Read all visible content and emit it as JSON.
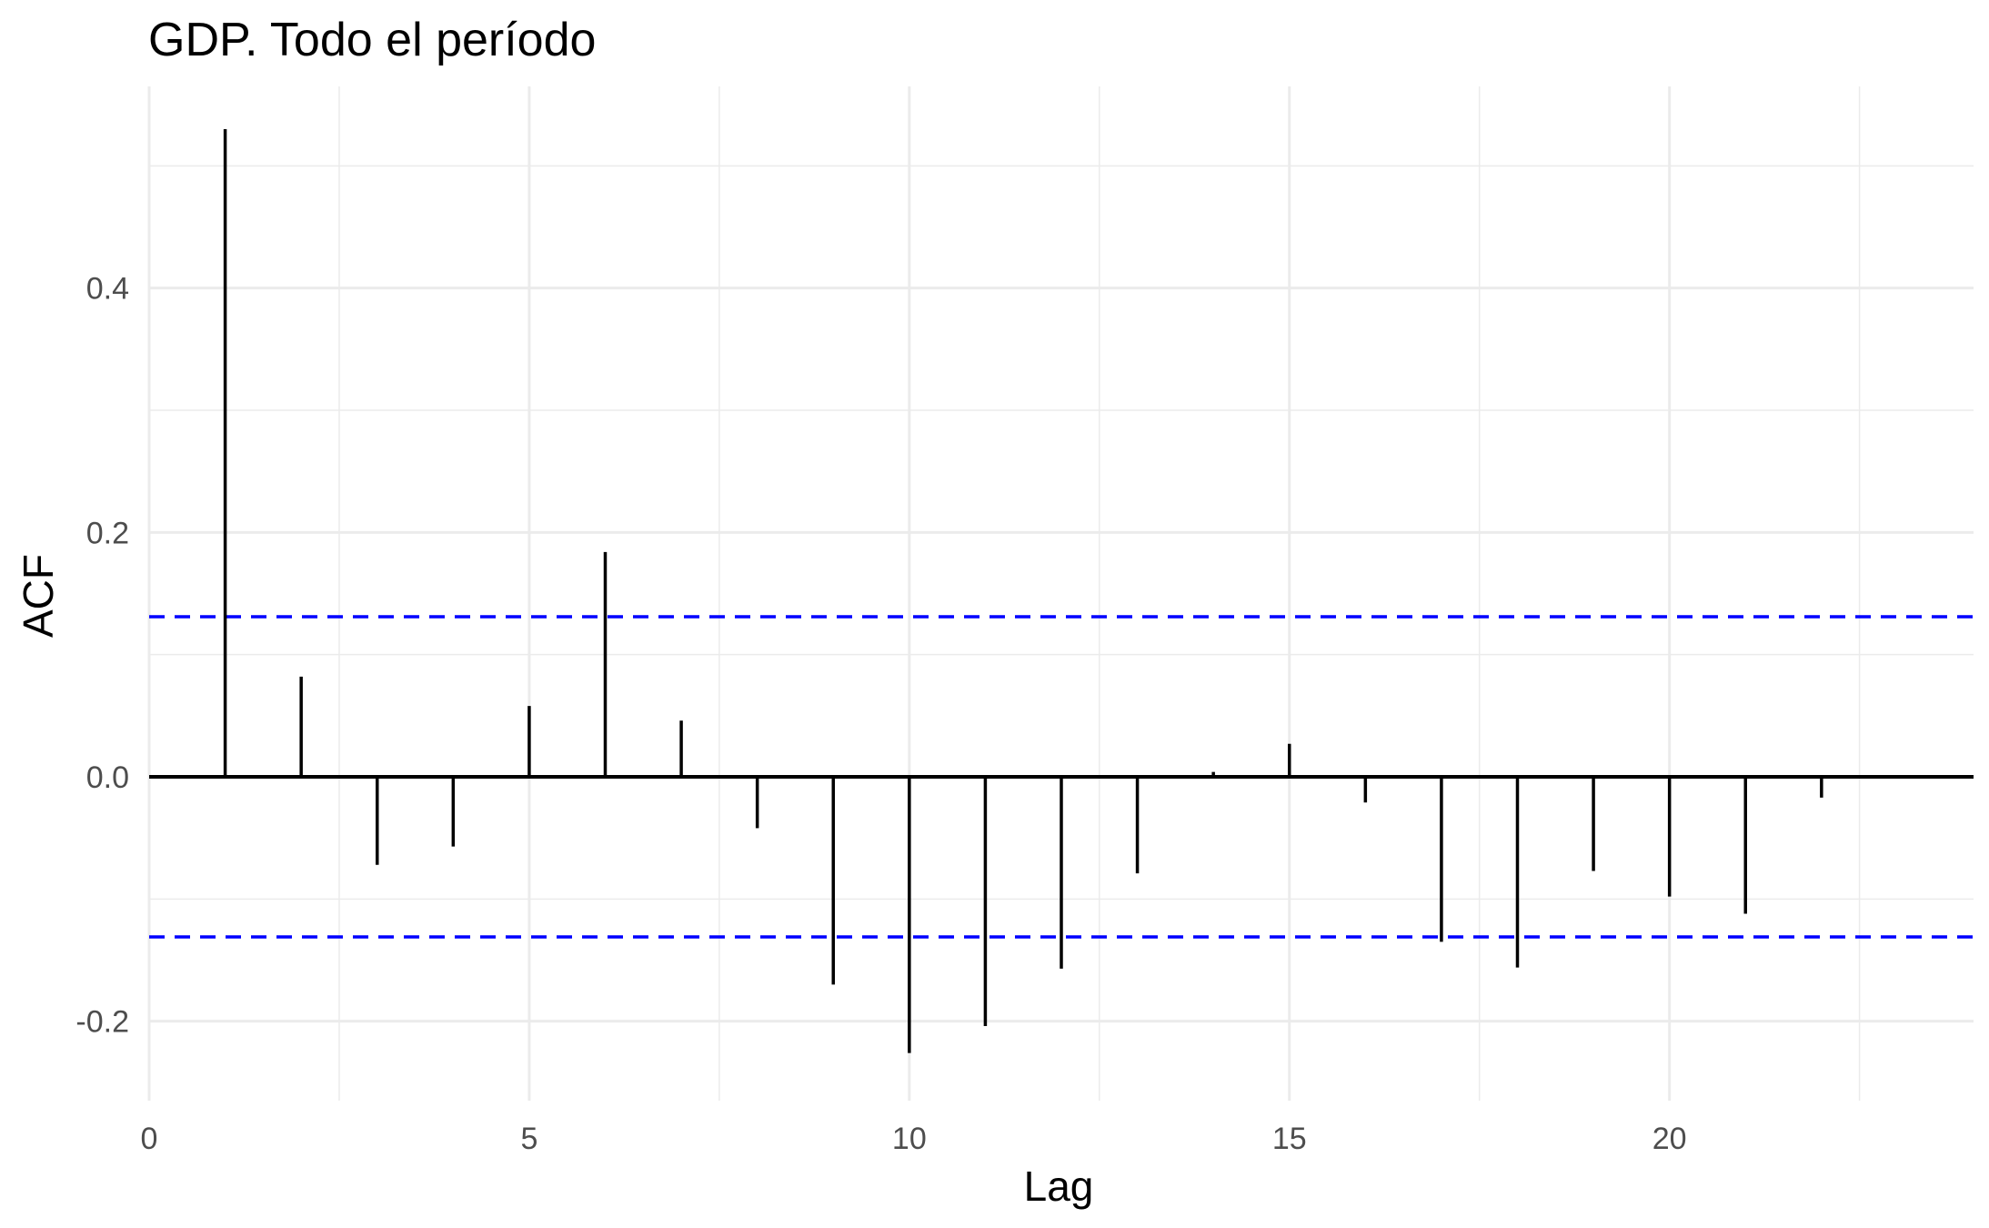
{
  "chart_data": {
    "type": "bar",
    "title": "GDP. Todo el período",
    "xlabel": "Lag",
    "ylabel": "ACF",
    "x": [
      1,
      2,
      3,
      4,
      5,
      6,
      7,
      8,
      9,
      10,
      11,
      12,
      13,
      14,
      15,
      16,
      17,
      18,
      19,
      20,
      21,
      22
    ],
    "values": [
      0.53,
      0.082,
      -0.072,
      -0.057,
      0.058,
      0.184,
      0.046,
      -0.042,
      -0.17,
      -0.226,
      -0.204,
      -0.157,
      -0.079,
      0.004,
      0.027,
      -0.021,
      -0.135,
      -0.156,
      -0.077,
      -0.098,
      -0.112,
      -0.017
    ],
    "confidence_limits": [
      0.131,
      -0.131
    ],
    "xlim": [
      0,
      24
    ],
    "ylim": [
      -0.265,
      0.565
    ],
    "x_ticks": [
      0,
      5,
      10,
      15,
      20
    ],
    "y_ticks": [
      -0.2,
      0.0,
      0.2,
      0.4
    ],
    "x_tick_labels": [
      "0",
      "5",
      "10",
      "15",
      "20"
    ],
    "y_tick_labels": [
      "-0.2",
      "0.0",
      "0.2",
      "0.4"
    ],
    "grid": true,
    "colors": {
      "bars": "#000000",
      "confidence": "#0000ff",
      "grid": "#ebebeb",
      "tick_text": "#4d4d4d"
    }
  }
}
